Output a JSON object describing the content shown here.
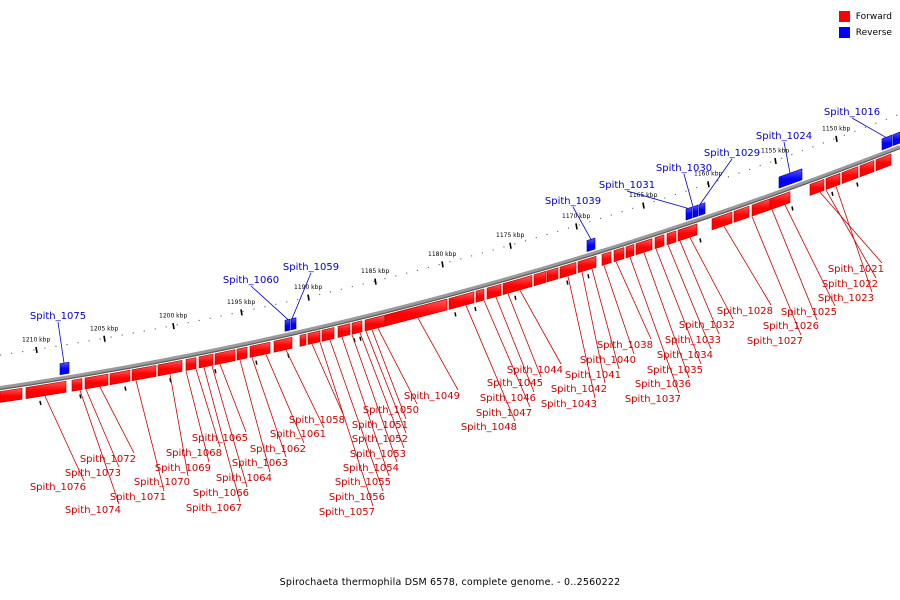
{
  "legend": {
    "forward_label": "Forward",
    "reverse_label": "Reverse",
    "forward_color": "#ff0000",
    "reverse_color": "#0000ff"
  },
  "caption": "Spirochaeta thermophila DSM 6578, complete genome. - 0..2560222",
  "colors": {
    "forward": "#ff0000",
    "forward_dark": "#b80000",
    "reverse": "#0000ff",
    "reverse_dark": "#0000a8",
    "backbone": "#808080",
    "forward_label": "#cc0000",
    "reverse_label": "#0000cc"
  },
  "ticks": [
    "1150 kbp",
    "1155 kbp",
    "1160 kbp",
    "1165 kbp",
    "1170 kbp",
    "1175 kbp",
    "1180 kbp",
    "1185 kbp",
    "1190 kbp",
    "1195 kbp",
    "1200 kbp",
    "1205 kbp",
    "1210 kbp"
  ],
  "reverse_genes": [
    "Spith_1016",
    "Spith_1024",
    "Spith_1029",
    "Spith_1030",
    "Spith_1031",
    "Spith_1039",
    "Spith_1059",
    "Spith_1060",
    "Spith_1075"
  ],
  "forward_genes": [
    "Spith_1021",
    "Spith_1022",
    "Spith_1023",
    "Spith_1025",
    "Spith_1026",
    "Spith_1027",
    "Spith_1028",
    "Spith_1032",
    "Spith_1033",
    "Spith_1034",
    "Spith_1035",
    "Spith_1036",
    "Spith_1037",
    "Spith_1038",
    "Spith_1040",
    "Spith_1041",
    "Spith_1042",
    "Spith_1043",
    "Spith_1044",
    "Spith_1045",
    "Spith_1046",
    "Spith_1047",
    "Spith_1048",
    "Spith_1049",
    "Spith_1050",
    "Spith_1051",
    "Spith_1052",
    "Spith_1053",
    "Spith_1054",
    "Spith_1055",
    "Spith_1056",
    "Spith_1057",
    "Spith_1058",
    "Spith_1061",
    "Spith_1062",
    "Spith_1063",
    "Spith_1064",
    "Spith_1065",
    "Spith_1066",
    "Spith_1067",
    "Spith_1068",
    "Spith_1069",
    "Spith_1070",
    "Spith_1071",
    "Spith_1072",
    "Spith_1073",
    "Spith_1074",
    "Spith_1076"
  ]
}
